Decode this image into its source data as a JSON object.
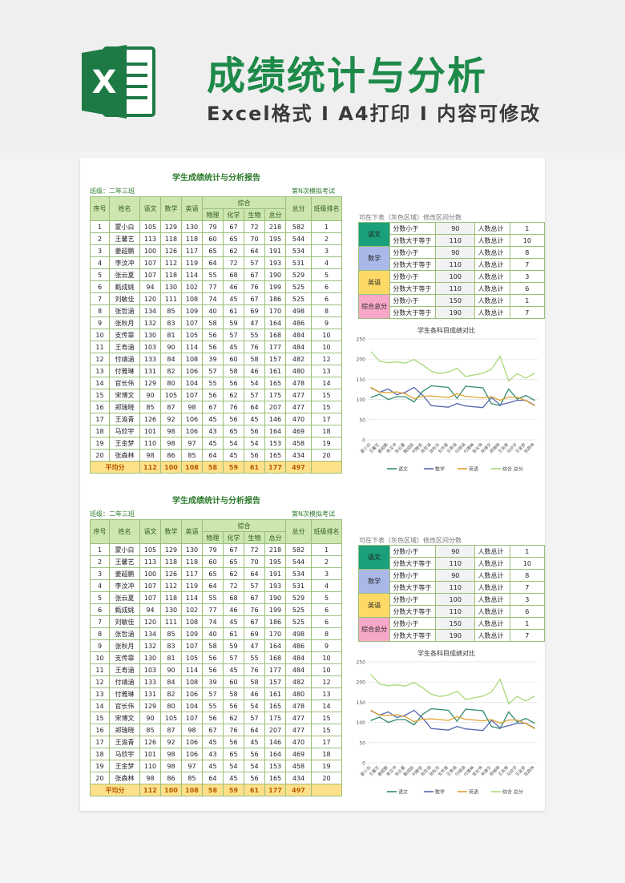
{
  "banner": {
    "title": "成绩统计与分析",
    "subtitle": "Excel格式 I A4打印 I 内容可修改",
    "logo_letter": "X"
  },
  "report": {
    "title": "学生成绩统计与分析报告",
    "class_label": "班级：二年三班",
    "exam_label": "第N次模拟考试",
    "headers": {
      "seq": "序号",
      "name": "姓名",
      "chinese": "语文",
      "math": "数学",
      "english": "英语",
      "composite": "综合",
      "physics": "物理",
      "chemistry": "化学",
      "biology": "生物",
      "sub_total": "总分",
      "total": "总分",
      "rank": "班级排名"
    },
    "rows": [
      [
        "1",
        "蒙小白",
        "105",
        "129",
        "130",
        "79",
        "67",
        "72",
        "218",
        "582",
        "1"
      ],
      [
        "2",
        "王馨艺",
        "113",
        "118",
        "118",
        "60",
        "65",
        "70",
        "195",
        "544",
        "2"
      ],
      [
        "3",
        "姜超鹏",
        "100",
        "126",
        "117",
        "65",
        "62",
        "64",
        "191",
        "534",
        "3"
      ],
      [
        "4",
        "李汶冲",
        "107",
        "112",
        "119",
        "64",
        "72",
        "57",
        "193",
        "531",
        "4"
      ],
      [
        "5",
        "张云夏",
        "107",
        "118",
        "114",
        "55",
        "68",
        "67",
        "190",
        "529",
        "5"
      ],
      [
        "6",
        "甄成姚",
        "94",
        "130",
        "102",
        "77",
        "46",
        "76",
        "199",
        "525",
        "6"
      ],
      [
        "7",
        "刘敏佳",
        "120",
        "111",
        "108",
        "74",
        "45",
        "67",
        "186",
        "525",
        "6"
      ],
      [
        "8",
        "张哲涵",
        "134",
        "85",
        "109",
        "40",
        "61",
        "69",
        "170",
        "498",
        "8"
      ],
      [
        "9",
        "张秋月",
        "132",
        "83",
        "107",
        "58",
        "59",
        "47",
        "164",
        "486",
        "9"
      ],
      [
        "10",
        "支传霏",
        "130",
        "81",
        "105",
        "56",
        "57",
        "55",
        "168",
        "484",
        "10"
      ],
      [
        "11",
        "王寿涵",
        "103",
        "90",
        "114",
        "56",
        "45",
        "76",
        "177",
        "484",
        "10"
      ],
      [
        "12",
        "付靖涵",
        "133",
        "84",
        "108",
        "39",
        "60",
        "58",
        "157",
        "482",
        "12"
      ],
      [
        "13",
        "付雅琳",
        "131",
        "82",
        "106",
        "57",
        "58",
        "46",
        "161",
        "480",
        "13"
      ],
      [
        "14",
        "官长伟",
        "129",
        "80",
        "104",
        "55",
        "56",
        "54",
        "165",
        "478",
        "14"
      ],
      [
        "15",
        "宋博文",
        "90",
        "105",
        "107",
        "56",
        "62",
        "57",
        "175",
        "477",
        "15"
      ],
      [
        "16",
        "郑瑞晓",
        "85",
        "87",
        "98",
        "67",
        "76",
        "64",
        "207",
        "477",
        "15"
      ],
      [
        "17",
        "王渝青",
        "126",
        "92",
        "106",
        "45",
        "56",
        "45",
        "146",
        "470",
        "17"
      ],
      [
        "18",
        "马欣宇",
        "101",
        "98",
        "106",
        "43",
        "65",
        "56",
        "164",
        "469",
        "18"
      ],
      [
        "19",
        "王金梦",
        "110",
        "98",
        "97",
        "45",
        "54",
        "54",
        "153",
        "458",
        "19"
      ],
      [
        "20",
        "张森林",
        "98",
        "86",
        "85",
        "64",
        "45",
        "56",
        "165",
        "434",
        "20"
      ]
    ],
    "average": {
      "label": "平均分",
      "chinese": "112",
      "math": "100",
      "english": "108",
      "physics": "58",
      "chemistry": "59",
      "biology": "61",
      "sub_total": "177",
      "total": "497"
    }
  },
  "ranges": {
    "hint": "可在下表（灰色区域）修改区间分数",
    "less_than": "分数小于",
    "at_least": "分数大于等于",
    "count_label": "人数总计",
    "subjects": [
      {
        "name": "语文",
        "color": "#1aa07a",
        "low": "90",
        "low_count": "1",
        "high": "110",
        "high_count": "10"
      },
      {
        "name": "数学",
        "color": "#a9b8e6",
        "low": "90",
        "low_count": "8",
        "high": "110",
        "high_count": "7"
      },
      {
        "name": "英语",
        "color": "#ffd966",
        "low": "100",
        "low_count": "3",
        "high": "110",
        "high_count": "6"
      },
      {
        "name": "综合总分",
        "color": "#f7a8c8",
        "low": "150",
        "low_count": "1",
        "high": "190",
        "high_count": "7"
      }
    ]
  },
  "chart_data": {
    "type": "line",
    "title": "学生各科目成绩对比",
    "categories": [
      "蒙小白",
      "王馨艺",
      "姜超鹏",
      "李汶冲",
      "张云夏",
      "甄成姚",
      "刘敏佳",
      "张哲涵",
      "张秋月",
      "支传霏",
      "王寿涵",
      "付靖涵",
      "付雅琳",
      "官长伟",
      "宋博文",
      "郑瑞晓",
      "王渝青",
      "马欣宇",
      "王金梦",
      "张森林"
    ],
    "ylim": [
      0,
      250
    ],
    "yticks": [
      "0",
      "50",
      "100",
      "150",
      "200",
      "250"
    ],
    "grid": true,
    "legend_position": "bottom",
    "series": [
      {
        "name": "语文",
        "color": "#2e8b6f",
        "values": [
          105,
          113,
          100,
          107,
          107,
          94,
          120,
          134,
          132,
          130,
          103,
          133,
          131,
          129,
          90,
          85,
          126,
          101,
          110,
          98
        ]
      },
      {
        "name": "数学",
        "color": "#5a67b0",
        "values": [
          129,
          118,
          126,
          112,
          118,
          130,
          111,
          85,
          83,
          81,
          90,
          84,
          82,
          80,
          105,
          87,
          92,
          98,
          98,
          86
        ]
      },
      {
        "name": "英语",
        "color": "#e0a030",
        "values": [
          130,
          118,
          117,
          119,
          114,
          102,
          108,
          109,
          107,
          105,
          114,
          108,
          106,
          104,
          107,
          98,
          106,
          106,
          97,
          85
        ]
      },
      {
        "name": "综合 总分",
        "color": "#a8d878",
        "values": [
          218,
          195,
          191,
          193,
          190,
          199,
          186,
          170,
          164,
          168,
          177,
          157,
          161,
          165,
          175,
          207,
          146,
          164,
          153,
          165
        ]
      }
    ]
  }
}
